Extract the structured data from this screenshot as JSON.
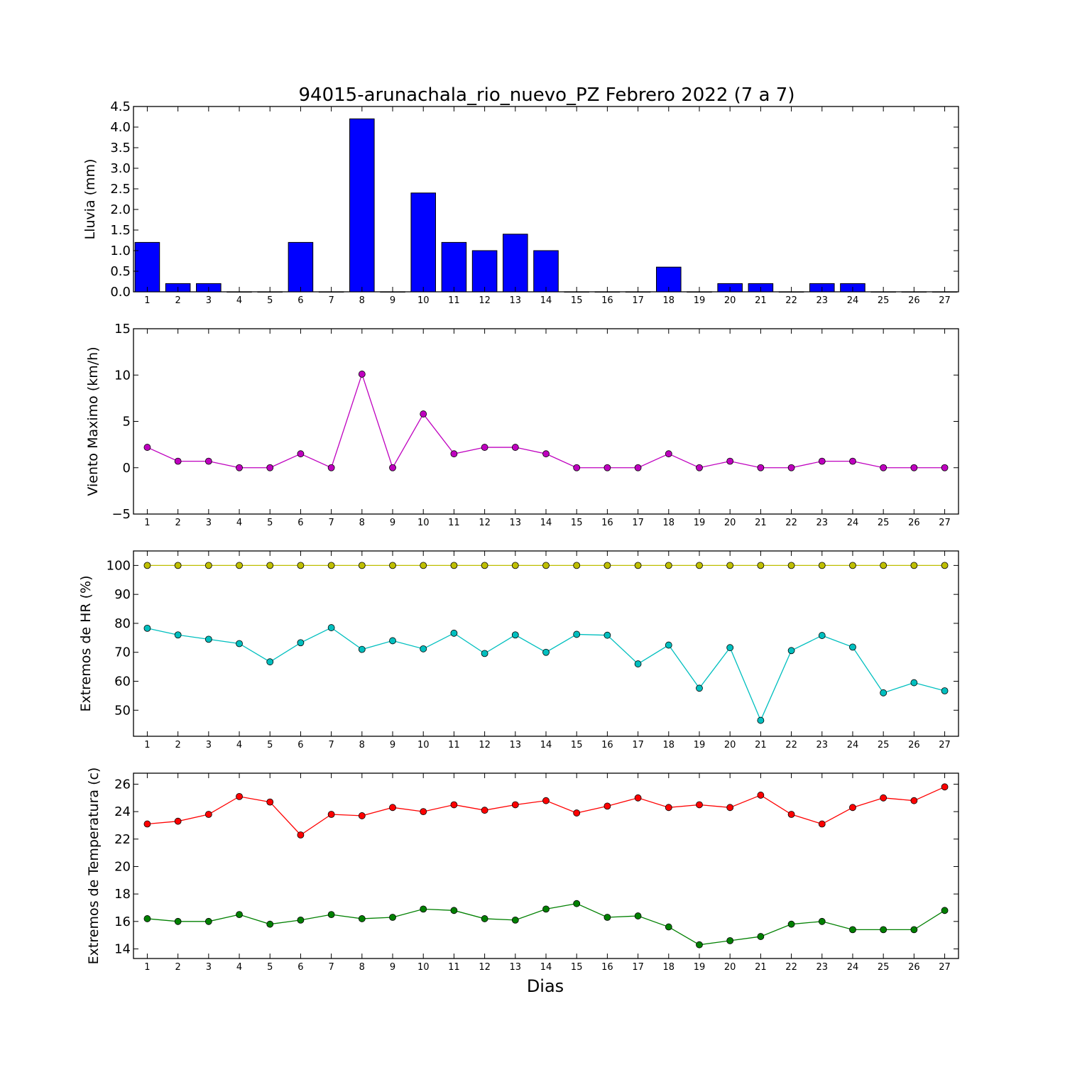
{
  "title": "94015-arunachala_rio_nuevo_PZ Febrero 2022  (7 a 7)",
  "xlabel": "Dias",
  "days": [
    1,
    2,
    3,
    4,
    5,
    6,
    7,
    8,
    9,
    10,
    11,
    12,
    13,
    14,
    15,
    16,
    17,
    18,
    19,
    20,
    21,
    22,
    23,
    24,
    25,
    26,
    27
  ],
  "chart_data": [
    {
      "type": "bar",
      "ylabel": "Lluvia (mm)",
      "ylim": [
        0,
        4.5
      ],
      "yticks": [
        0.0,
        0.5,
        1.0,
        1.5,
        2.0,
        2.5,
        3.0,
        3.5,
        4.0,
        4.5
      ],
      "ytick_labels": [
        "0.0",
        "0.5",
        "1.0",
        "1.5",
        "2.0",
        "2.5",
        "3.0",
        "3.5",
        "4.0",
        "4.5"
      ],
      "colors": {
        "bar": "#0000ff"
      },
      "x": [
        1,
        2,
        3,
        4,
        5,
        6,
        7,
        8,
        9,
        10,
        11,
        12,
        13,
        14,
        15,
        16,
        17,
        18,
        19,
        20,
        21,
        22,
        23,
        24,
        25,
        26,
        27
      ],
      "values": [
        1.2,
        0.2,
        0.2,
        0,
        0,
        1.2,
        0,
        4.2,
        0,
        2.4,
        1.2,
        1.0,
        1.4,
        1.0,
        0,
        0,
        0,
        0.6,
        0,
        0.2,
        0.2,
        0,
        0.2,
        0.2,
        0,
        0,
        0
      ]
    },
    {
      "type": "line",
      "ylabel": "Viento Maximo (km/h)",
      "ylim": [
        -5,
        15
      ],
      "yticks": [
        -5,
        0,
        5,
        10,
        15
      ],
      "ytick_labels": [
        "−5",
        "0",
        "5",
        "10",
        "15"
      ],
      "x": [
        1,
        2,
        3,
        4,
        5,
        6,
        7,
        8,
        9,
        10,
        11,
        12,
        13,
        14,
        15,
        16,
        17,
        18,
        19,
        20,
        21,
        22,
        23,
        24,
        25,
        26,
        27
      ],
      "series": [
        {
          "color": "#bf00bf",
          "values": [
            2.2,
            0.7,
            0.7,
            0,
            0,
            1.5,
            0,
            10.1,
            0,
            5.8,
            1.5,
            2.2,
            2.2,
            1.5,
            0,
            0,
            0,
            1.5,
            0,
            0.7,
            0,
            0,
            0.7,
            0.7,
            0,
            0,
            0
          ]
        }
      ]
    },
    {
      "type": "line",
      "ylabel": "Extremos de HR (%)",
      "ylim": [
        41,
        105
      ],
      "yticks": [
        50,
        60,
        70,
        80,
        90,
        100
      ],
      "ytick_labels": [
        "50",
        "60",
        "70",
        "80",
        "90",
        "100"
      ],
      "x": [
        1,
        2,
        3,
        4,
        5,
        6,
        7,
        8,
        9,
        10,
        11,
        12,
        13,
        14,
        15,
        16,
        17,
        18,
        19,
        20,
        21,
        22,
        23,
        24,
        25,
        26,
        27
      ],
      "series": [
        {
          "color": "#bfbf00",
          "values": [
            100,
            100,
            100,
            100,
            100,
            100,
            100,
            100,
            100,
            100,
            100,
            100,
            100,
            100,
            100,
            100,
            100,
            100,
            100,
            100,
            100,
            100,
            100,
            100,
            100,
            100,
            100
          ]
        },
        {
          "color": "#00bfbf",
          "values": [
            78.3,
            76,
            74.5,
            73,
            66.7,
            73.3,
            78.5,
            71,
            74,
            71.2,
            76.6,
            69.6,
            76,
            70,
            76.2,
            75.9,
            66,
            72.5,
            57.6,
            71.6,
            46.5,
            70.6,
            75.8,
            71.8,
            56,
            59.5,
            56.7
          ]
        }
      ]
    },
    {
      "type": "line",
      "ylabel": "Extremos de Temperatura (c)",
      "ylim": [
        13.3,
        26.8
      ],
      "yticks": [
        14,
        16,
        18,
        20,
        22,
        24,
        26
      ],
      "ytick_labels": [
        "14",
        "16",
        "18",
        "20",
        "22",
        "24",
        "26"
      ],
      "x": [
        1,
        2,
        3,
        4,
        5,
        6,
        7,
        8,
        9,
        10,
        11,
        12,
        13,
        14,
        15,
        16,
        17,
        18,
        19,
        20,
        21,
        22,
        23,
        24,
        25,
        26,
        27
      ],
      "series": [
        {
          "color": "#ff0000",
          "values": [
            23.1,
            23.3,
            23.8,
            25.1,
            24.7,
            22.3,
            23.8,
            23.7,
            24.3,
            24.0,
            24.5,
            24.1,
            24.5,
            24.8,
            23.9,
            24.4,
            25.0,
            24.3,
            24.5,
            24.3,
            25.2,
            23.8,
            23.1,
            24.3,
            25.0,
            24.8,
            25.8
          ]
        },
        {
          "color": "#008000",
          "values": [
            16.2,
            16.0,
            16.0,
            16.5,
            15.8,
            16.1,
            16.5,
            16.2,
            16.3,
            16.9,
            16.8,
            16.2,
            16.1,
            16.9,
            17.3,
            16.3,
            16.4,
            15.6,
            14.3,
            14.6,
            14.9,
            15.8,
            16.0,
            15.4,
            15.4,
            15.4,
            16.8
          ]
        }
      ]
    }
  ]
}
